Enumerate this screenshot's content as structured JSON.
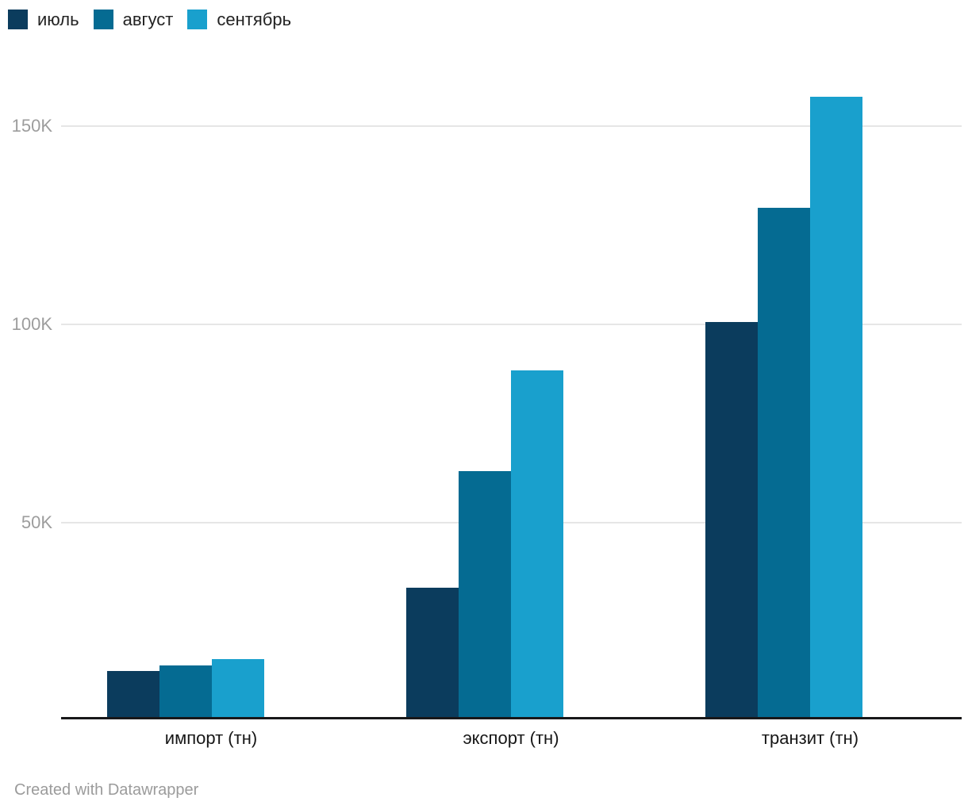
{
  "legend": {
    "items": [
      {
        "label": "июль",
        "color": "#0b3c5d"
      },
      {
        "label": "август",
        "color": "#056b92"
      },
      {
        "label": "сентябрь",
        "color": "#19a0cd"
      }
    ]
  },
  "footer": {
    "text": "Created with Datawrapper"
  },
  "chart_data": {
    "type": "bar",
    "grouped": true,
    "title": "",
    "xlabel": "",
    "ylabel": "",
    "categories": [
      "импорт (тн)",
      "экспорт (тн)",
      "транзит (тн)"
    ],
    "series": [
      {
        "name": "июль",
        "color": "#0b3c5d",
        "values": [
          12200,
          33200,
          100200
        ]
      },
      {
        "name": "август",
        "color": "#056b92",
        "values": [
          13600,
          62600,
          129000
        ]
      },
      {
        "name": "сентябрь",
        "color": "#19a0cd",
        "values": [
          15200,
          88000,
          157000
        ]
      }
    ],
    "y_ticks": [
      {
        "value": 50000,
        "label": "50K"
      },
      {
        "value": 100000,
        "label": "100K"
      },
      {
        "value": 150000,
        "label": "150K"
      }
    ],
    "ylim": [
      0,
      160000
    ],
    "grid": "horizontal",
    "legend_position": "top-left"
  }
}
